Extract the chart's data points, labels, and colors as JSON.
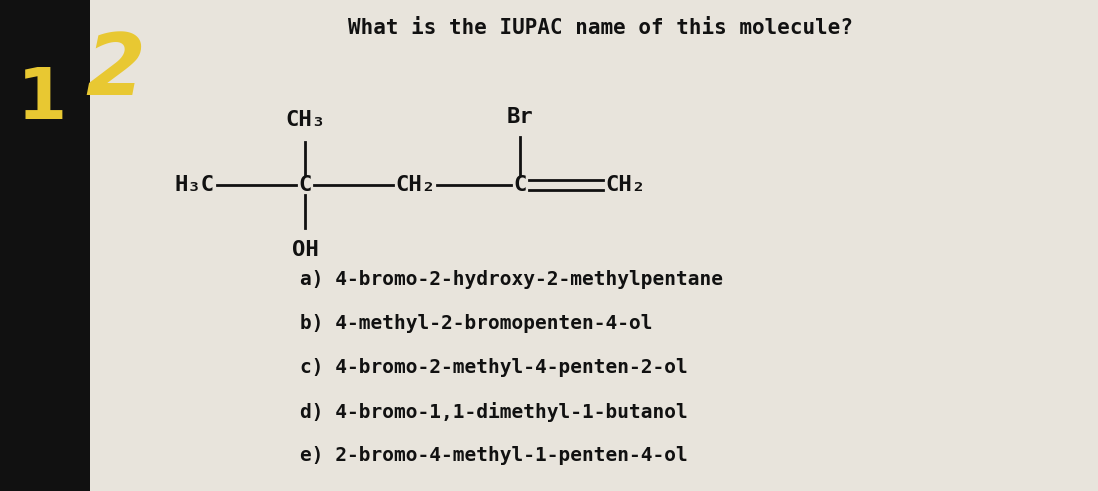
{
  "bg_color": "#e8e4dc",
  "left_bg_color": "#111111",
  "number_color": "#e8c832",
  "question_text": "What is the IUPAC name of this molecule?",
  "question_fontsize": 15,
  "question_color": "#111111",
  "molecule_fontsize": 16,
  "molecule_color": "#111111",
  "choices": [
    "a) 4-bromo-2-hydroxy-2-methylpentane",
    "b) 4-methyl-2-bromopenten-4-ol",
    "c) 4-bromo-2-methyl-4-penten-2-ol",
    "d) 4-bromo-1,1-dimethyl-1-butanol",
    "e) 2-bromo-4-methyl-1-penten-4-ol"
  ],
  "choices_fontsize": 14,
  "choices_color": "#111111",
  "line_color": "#111111",
  "lw": 2.0
}
